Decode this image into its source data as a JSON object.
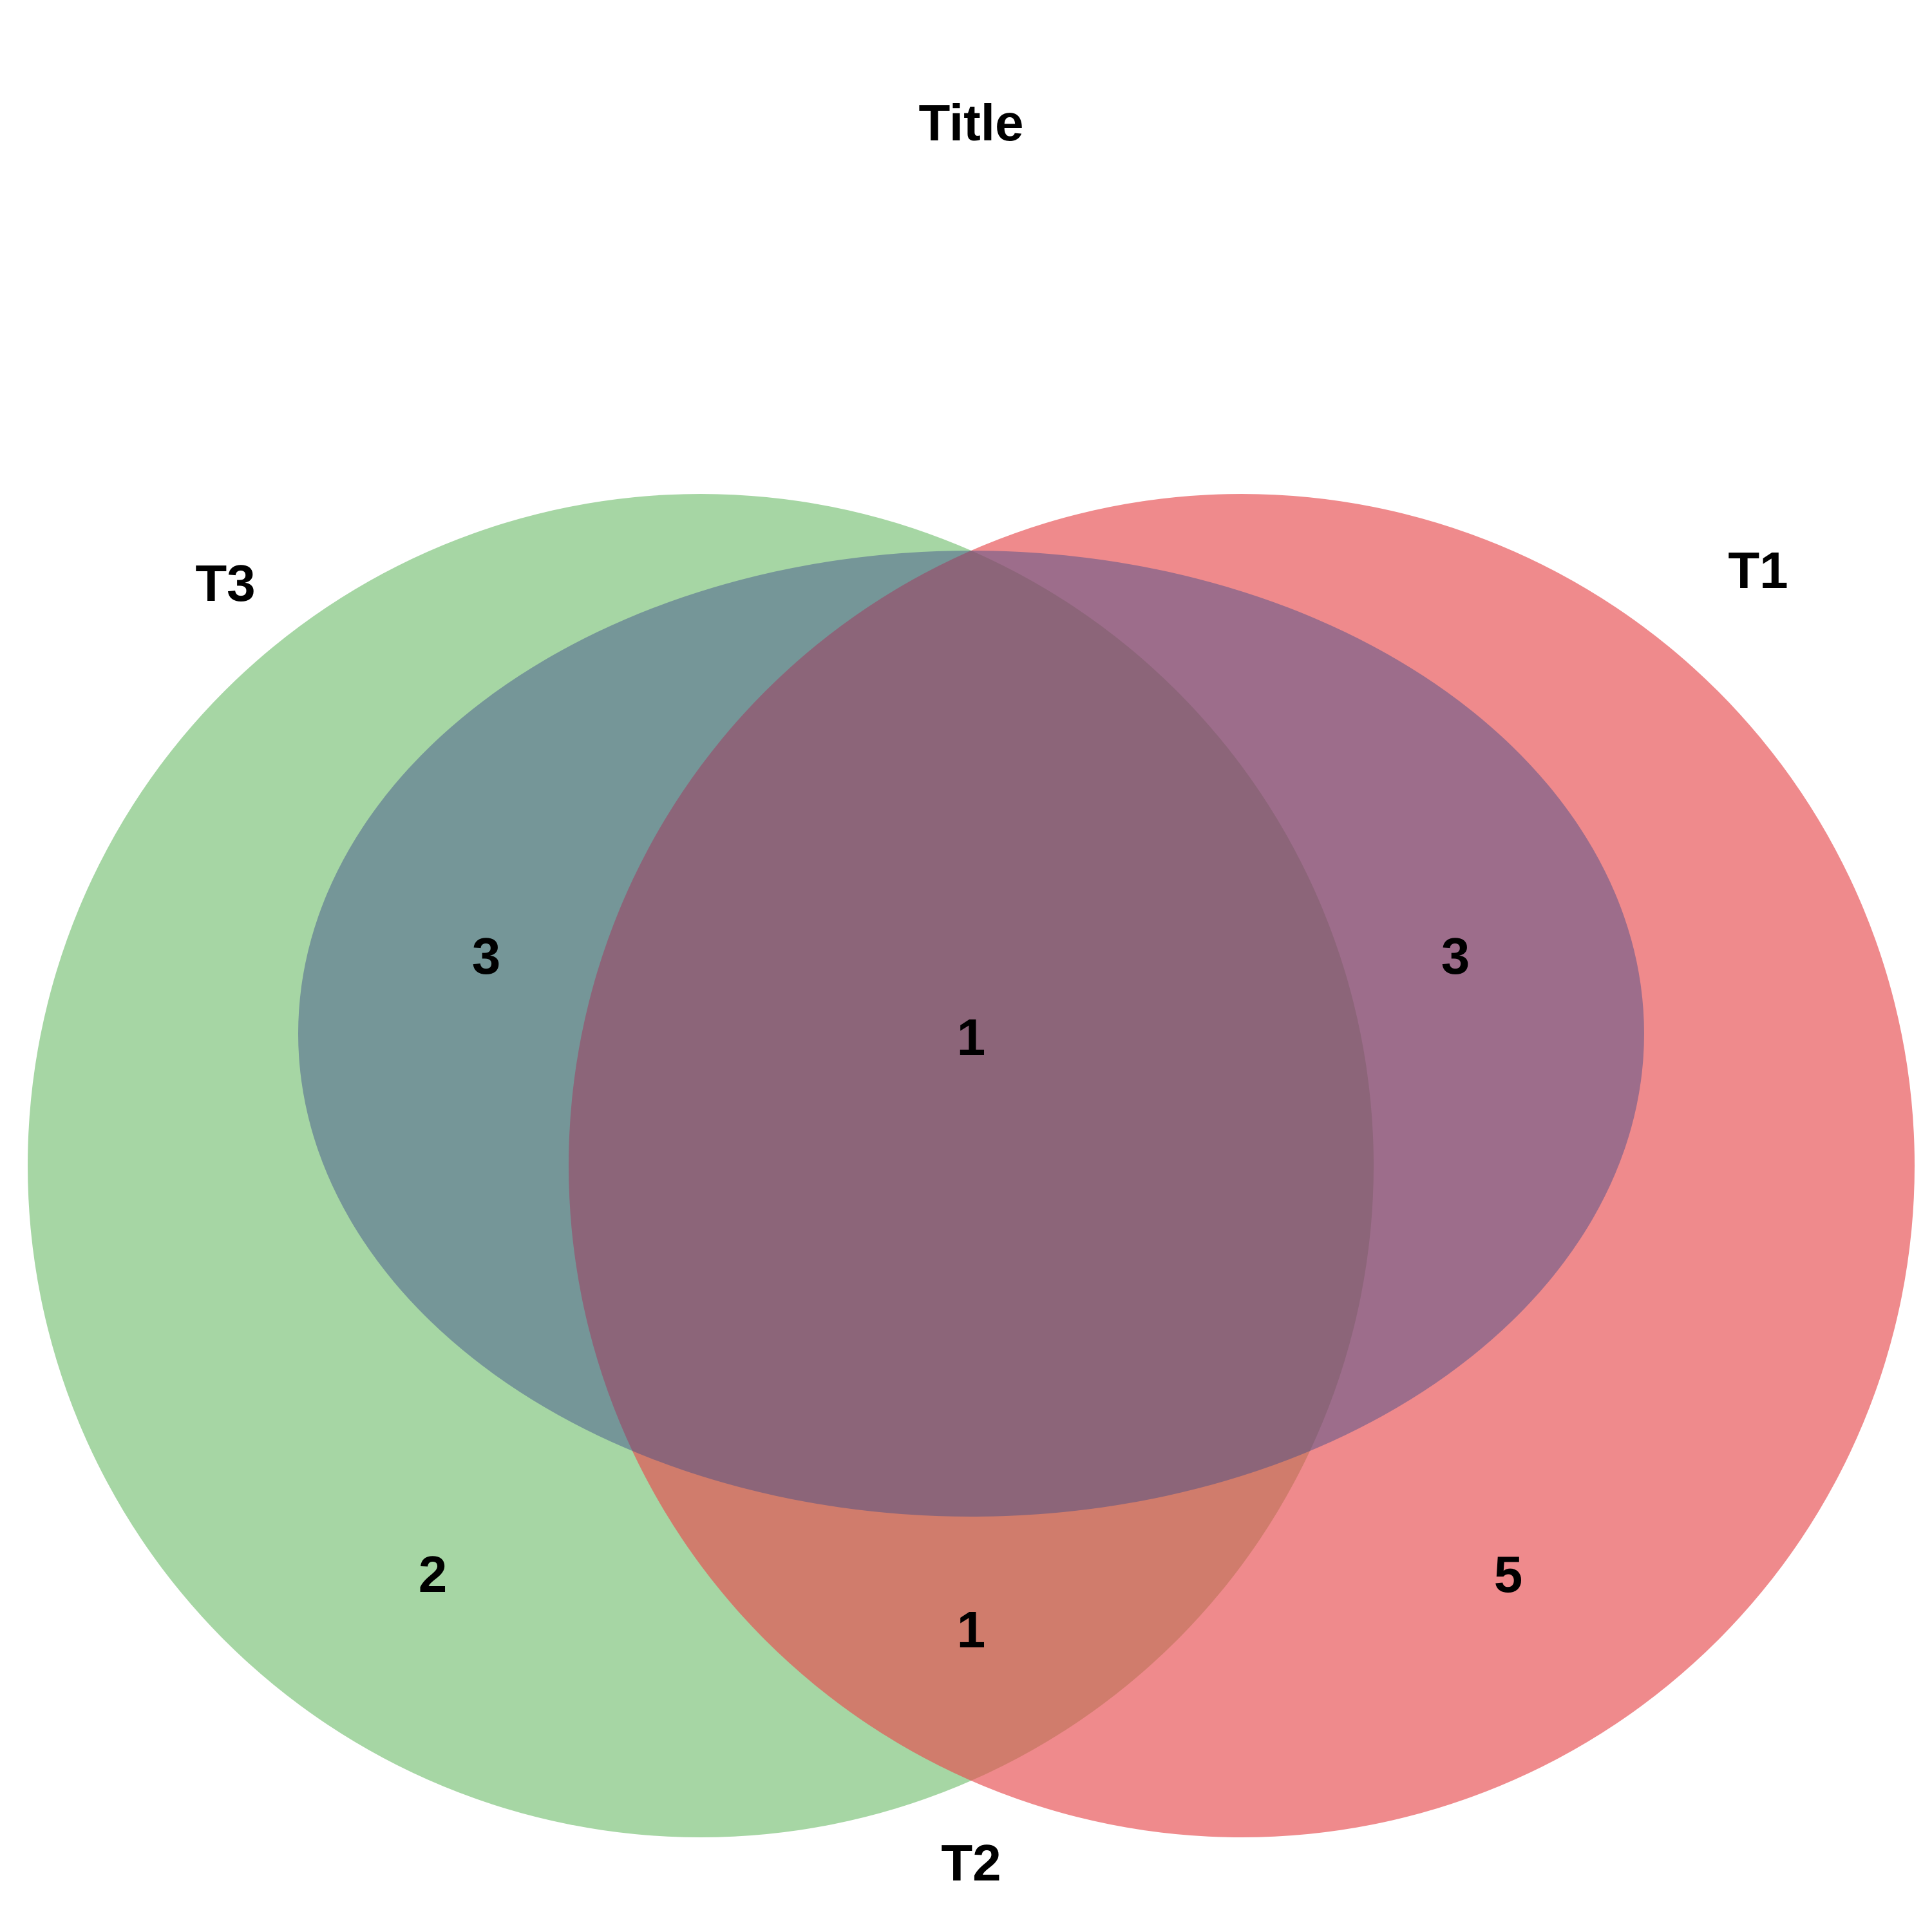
{
  "title": "Title",
  "sets": {
    "T1": {
      "label": "T1",
      "color": "#e74c4f"
    },
    "T2": {
      "label": "T2",
      "color": "#3a4a8a"
    },
    "T3": {
      "label": "T3",
      "color": "#5db55a"
    }
  },
  "regions": {
    "T1_only": "5",
    "T2_only": "",
    "T3_only": "2",
    "T1_T2": "3",
    "T2_T3": "3",
    "T1_T3": "1",
    "T1_T2_T3": "1"
  },
  "fill_opacity": 0.55
}
